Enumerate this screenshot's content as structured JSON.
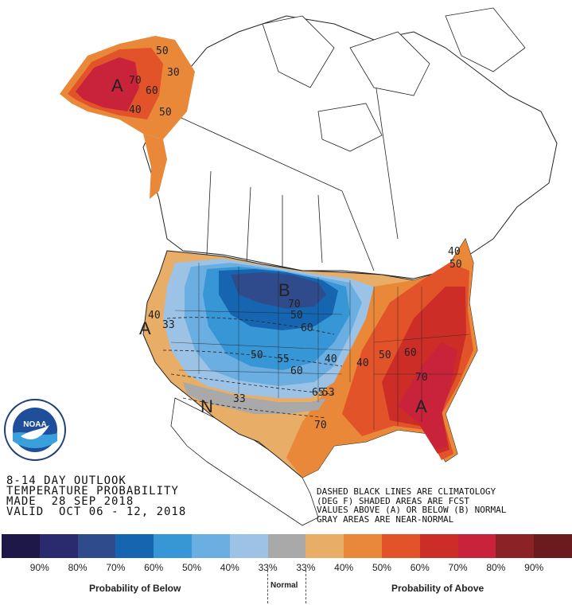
{
  "map": {
    "region": "North America",
    "map_labels": [
      "A",
      "A",
      "A",
      "B",
      "N",
      "70",
      "60",
      "50",
      "50",
      "30",
      "40",
      "40",
      "33",
      "33",
      "50",
      "55",
      "60",
      "70",
      "50",
      "40",
      "40",
      "50",
      "60",
      "70",
      "65",
      "53",
      "40",
      "50",
      "60",
      "70"
    ]
  },
  "info": {
    "line1": "8-14 DAY OUTLOOK",
    "line2": "TEMPERATURE PROBABILITY",
    "line3": "MADE  28 SEP 2018",
    "line4": "VALID  OCT 06 - 12, 2018"
  },
  "notes": {
    "line1": "DASHED BLACK LINES ARE CLIMATOLOGY",
    "line2": "(DEG F) SHADED AREAS ARE FCST",
    "line3": "VALUES ABOVE (A) OR BELOW (B) NORMAL",
    "line4": "GRAY AREAS ARE NEAR-NORMAL"
  },
  "legend": {
    "ticks": [
      "90%",
      "80%",
      "70%",
      "60%",
      "50%",
      "40%",
      "33%",
      "33%",
      "40%",
      "50%",
      "60%",
      "70%",
      "80%",
      "90%"
    ],
    "colors": [
      "#1d1848",
      "#2a2a6e",
      "#2f4b8c",
      "#1565b0",
      "#3796d6",
      "#6aaee2",
      "#9cc3e6",
      "#a9a9a9",
      "#e8ad66",
      "#e88838",
      "#e2532a",
      "#cc2d26",
      "#c8233a",
      "#8b2225",
      "#6b1a1d"
    ],
    "below_caption": "Probability of Below",
    "normal_caption": "Normal",
    "above_caption": "Probability of Above"
  },
  "logo": {
    "text": "NOAA",
    "ring_text": "NATIONAL OCEANIC AND ATMOSPHERIC ADMINISTRATION · U.S. DEPARTMENT OF COMMERCE"
  }
}
